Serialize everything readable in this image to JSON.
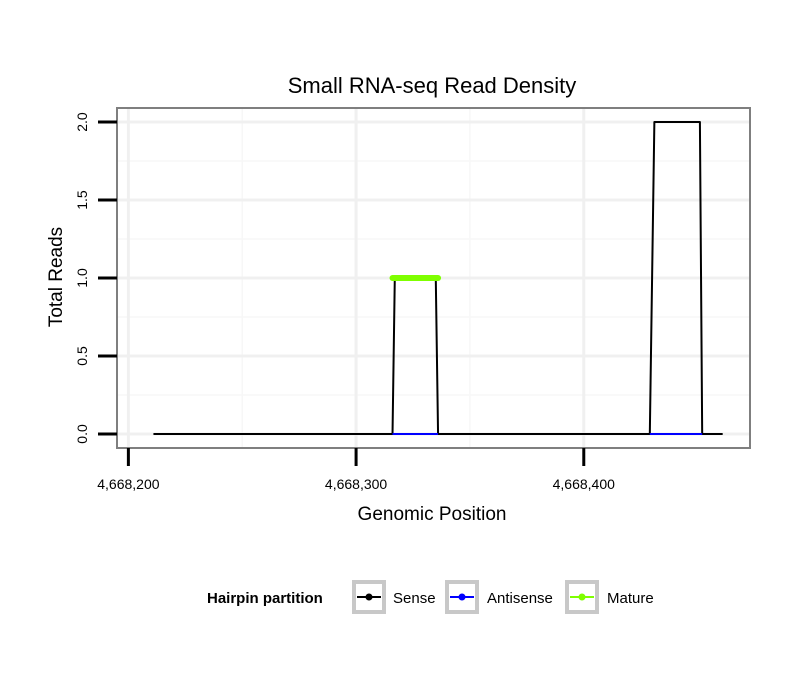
{
  "chart_data": {
    "type": "line",
    "title": "Small RNA-seq Read Density",
    "xlabel": "Genomic Position",
    "ylabel": "Total Reads",
    "xlim": [
      4668195,
      4668473
    ],
    "ylim": [
      -0.09,
      2.09
    ],
    "x_ticks": [
      4668200,
      4668300,
      4668400
    ],
    "x_tick_labels": [
      "4,668,200",
      "4,668,300",
      "4,668,400"
    ],
    "y_ticks": [
      0.0,
      0.5,
      1.0,
      1.5,
      2.0
    ],
    "y_tick_labels": [
      "0.0",
      "0.5",
      "1.0",
      "1.5",
      "2.0"
    ],
    "grid": true,
    "legend": {
      "title": "Hairpin partition",
      "position": "bottom",
      "entries": [
        {
          "label": "Sense",
          "color": "#000000"
        },
        {
          "label": "Antisense",
          "color": "#0000ff"
        },
        {
          "label": "Mature",
          "color": "#7fff00"
        }
      ]
    },
    "series": [
      {
        "name": "Sense",
        "color": "#000000",
        "x": [
          4668211,
          4668316,
          4668317,
          4668335,
          4668336,
          4668429,
          4668431,
          4668451,
          4668452,
          4668461
        ],
        "y": [
          0,
          0,
          1,
          1,
          0,
          0,
          2,
          2,
          0,
          0
        ]
      },
      {
        "name": "Antisense",
        "color": "#0000ff",
        "x": [
          4668316,
          4668336,
          4668429,
          4668452
        ],
        "y": [
          0,
          0,
          0,
          0
        ],
        "segments": [
          [
            0,
            1
          ],
          [
            2,
            3
          ]
        ]
      },
      {
        "name": "Mature",
        "color": "#7fff00",
        "x": [
          4668316,
          4668336
        ],
        "y": [
          1,
          1
        ]
      }
    ]
  }
}
